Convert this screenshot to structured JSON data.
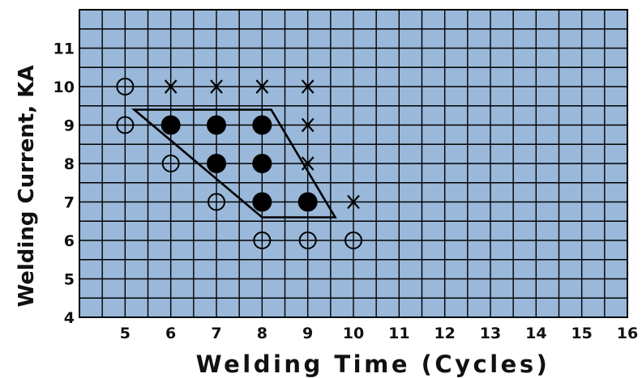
{
  "chart_data": {
    "type": "scatter",
    "title": "",
    "xlabel": "Welding Time (Cycles)",
    "ylabel": "Welding Current, KA",
    "xlim": [
      4,
      16
    ],
    "ylim": [
      4,
      12
    ],
    "x_ticks": [
      "5",
      "6",
      "7",
      "8",
      "9",
      "10",
      "11",
      "12",
      "13",
      "14",
      "15",
      "16"
    ],
    "y_ticks": [
      "4",
      "5",
      "6",
      "7",
      "8",
      "9",
      "10",
      "11"
    ],
    "grid": true,
    "background_color": "#9ab8d9",
    "series": [
      {
        "marker": "open-circle",
        "points": [
          [
            5,
            10
          ],
          [
            5,
            9
          ],
          [
            6,
            8
          ],
          [
            7,
            7
          ],
          [
            8,
            6
          ],
          [
            9,
            6
          ],
          [
            10,
            6
          ]
        ]
      },
      {
        "marker": "filled-circle",
        "points": [
          [
            6,
            9
          ],
          [
            7,
            9
          ],
          [
            8,
            9
          ],
          [
            7,
            8
          ],
          [
            8,
            8
          ],
          [
            8,
            7
          ],
          [
            9,
            7
          ]
        ]
      },
      {
        "marker": "x",
        "points": [
          [
            6,
            10
          ],
          [
            7,
            10
          ],
          [
            8,
            10
          ],
          [
            9,
            10
          ],
          [
            9,
            9
          ],
          [
            9,
            8
          ],
          [
            10,
            7
          ]
        ]
      }
    ],
    "region": {
      "shape": "polygon",
      "points": [
        [
          5.2,
          9.4
        ],
        [
          8.2,
          9.4
        ],
        [
          9.6,
          6.6
        ],
        [
          8.0,
          6.6
        ]
      ]
    }
  }
}
